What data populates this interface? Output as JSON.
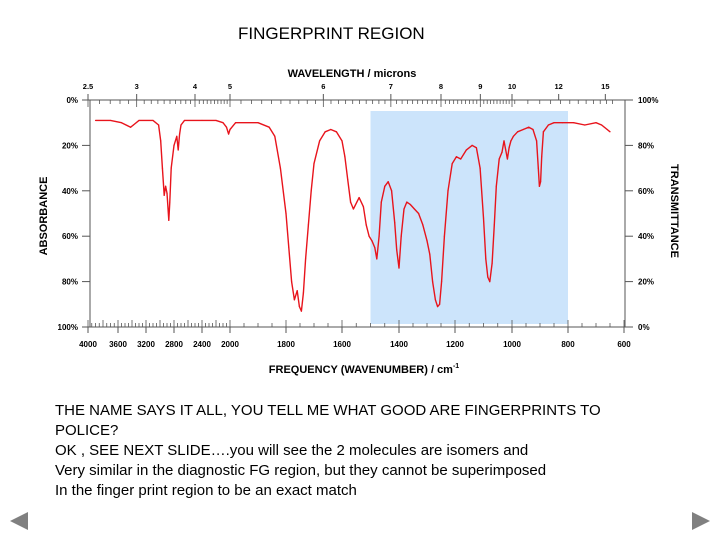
{
  "slide": {
    "title": "FINGERPRINT REGION",
    "body_lines": [
      "THE NAME SAYS IT ALL, YOU TELL ME WHAT GOOD ARE FINGERPRINTS TO",
      "POLICE?",
      "OK , SEE NEXT SLIDE….you will see the 2 molecules are isomers and",
      "Very similar in the diagnostic FG region, but they cannot be superimposed",
      "In the finger print region to be an exact match"
    ],
    "nav": {
      "prev_icon": "left-triangle-icon",
      "next_icon": "right-triangle-icon"
    }
  },
  "chart_data": {
    "type": "line",
    "title": "",
    "top_axis_label": "WAVELENGTH / microns",
    "top_ticks": [
      "2.5",
      "3",
      "4",
      "5",
      "6",
      "7",
      "8",
      "9",
      "10",
      "12",
      "15"
    ],
    "top_tick_values_um": [
      2.5,
      3,
      4,
      5,
      6,
      7,
      8,
      9,
      10,
      12,
      15
    ],
    "xlabel": "FREQUENCY (WAVENUMBER) / cm",
    "xlabel_superscript": "-1",
    "x_ticks": [
      "4000",
      "3600",
      "3200",
      "2800",
      "2400",
      "2000",
      "1800",
      "1600",
      "1400",
      "1200",
      "1000",
      "800",
      "600"
    ],
    "x_tick_values": [
      4000,
      3600,
      3200,
      2800,
      2400,
      2000,
      1800,
      1600,
      1400,
      1200,
      1000,
      800,
      600
    ],
    "left_axis_label": "ABSORBANCE",
    "left_ticks": [
      "0%",
      "20%",
      "40%",
      "60%",
      "80%",
      "100%"
    ],
    "right_axis_label": "TRANSMITTANCE",
    "right_ticks": [
      "100%",
      "80%",
      "60%",
      "40%",
      "20%",
      "0%"
    ],
    "y_tick_values": [
      100,
      80,
      60,
      40,
      20,
      0
    ],
    "ylim": [
      0,
      100
    ],
    "highlight_region": {
      "from": 1500,
      "to": 800,
      "color": "#cce4fb"
    },
    "series": [
      {
        "color": "#e8141c",
        "points": [
          [
            3900,
            91
          ],
          [
            3700,
            91
          ],
          [
            3550,
            90
          ],
          [
            3420,
            88
          ],
          [
            3380,
            89
          ],
          [
            3300,
            91
          ],
          [
            3100,
            91
          ],
          [
            3020,
            89
          ],
          [
            2990,
            82
          ],
          [
            2965,
            70
          ],
          [
            2940,
            58
          ],
          [
            2920,
            62
          ],
          [
            2900,
            59
          ],
          [
            2875,
            47
          ],
          [
            2860,
            55
          ],
          [
            2840,
            70
          ],
          [
            2800,
            80
          ],
          [
            2760,
            84
          ],
          [
            2740,
            78
          ],
          [
            2720,
            85
          ],
          [
            2700,
            89
          ],
          [
            2650,
            91
          ],
          [
            2400,
            91
          ],
          [
            2200,
            91
          ],
          [
            2100,
            90
          ],
          [
            2050,
            88
          ],
          [
            2020,
            85
          ],
          [
            2000,
            87
          ],
          [
            1980,
            90
          ],
          [
            1900,
            90
          ],
          [
            1860,
            88
          ],
          [
            1840,
            84
          ],
          [
            1820,
            70
          ],
          [
            1800,
            50
          ],
          [
            1790,
            35
          ],
          [
            1780,
            20
          ],
          [
            1770,
            12
          ],
          [
            1760,
            16
          ],
          [
            1752,
            9
          ],
          [
            1745,
            7
          ],
          [
            1738,
            15
          ],
          [
            1730,
            30
          ],
          [
            1720,
            45
          ],
          [
            1710,
            60
          ],
          [
            1700,
            72
          ],
          [
            1680,
            82
          ],
          [
            1660,
            86
          ],
          [
            1640,
            87
          ],
          [
            1620,
            86
          ],
          [
            1600,
            82
          ],
          [
            1590,
            75
          ],
          [
            1580,
            65
          ],
          [
            1570,
            55
          ],
          [
            1560,
            52
          ],
          [
            1540,
            57
          ],
          [
            1525,
            53
          ],
          [
            1515,
            45
          ],
          [
            1505,
            40
          ],
          [
            1495,
            38
          ],
          [
            1485,
            35
          ],
          [
            1478,
            30
          ],
          [
            1470,
            40
          ],
          [
            1462,
            55
          ],
          [
            1450,
            62
          ],
          [
            1438,
            64
          ],
          [
            1426,
            60
          ],
          [
            1415,
            46
          ],
          [
            1408,
            34
          ],
          [
            1400,
            26
          ],
          [
            1392,
            40
          ],
          [
            1382,
            52
          ],
          [
            1372,
            55
          ],
          [
            1360,
            54
          ],
          [
            1345,
            52
          ],
          [
            1330,
            50
          ],
          [
            1315,
            45
          ],
          [
            1300,
            38
          ],
          [
            1290,
            32
          ],
          [
            1280,
            20
          ],
          [
            1270,
            12
          ],
          [
            1262,
            9
          ],
          [
            1255,
            10
          ],
          [
            1248,
            20
          ],
          [
            1238,
            40
          ],
          [
            1225,
            60
          ],
          [
            1210,
            72
          ],
          [
            1195,
            75
          ],
          [
            1180,
            74
          ],
          [
            1160,
            78
          ],
          [
            1140,
            80
          ],
          [
            1125,
            79
          ],
          [
            1112,
            70
          ],
          [
            1100,
            48
          ],
          [
            1092,
            30
          ],
          [
            1085,
            22
          ],
          [
            1078,
            20
          ],
          [
            1070,
            28
          ],
          [
            1062,
            45
          ],
          [
            1055,
            62
          ],
          [
            1045,
            74
          ],
          [
            1035,
            77
          ],
          [
            1028,
            82
          ],
          [
            1022,
            78
          ],
          [
            1016,
            74
          ],
          [
            1010,
            79
          ],
          [
            1004,
            82
          ],
          [
            995,
            84
          ],
          [
            980,
            86
          ],
          [
            960,
            87
          ],
          [
            940,
            88
          ],
          [
            925,
            87
          ],
          [
            912,
            82
          ],
          [
            906,
            70
          ],
          [
            902,
            62
          ],
          [
            898,
            64
          ],
          [
            894,
            75
          ],
          [
            888,
            86
          ],
          [
            870,
            89
          ],
          [
            850,
            90
          ],
          [
            820,
            90
          ],
          [
            780,
            90
          ],
          [
            740,
            89
          ],
          [
            700,
            90
          ],
          [
            680,
            89
          ],
          [
            660,
            87
          ],
          [
            650,
            86
          ]
        ]
      }
    ]
  }
}
